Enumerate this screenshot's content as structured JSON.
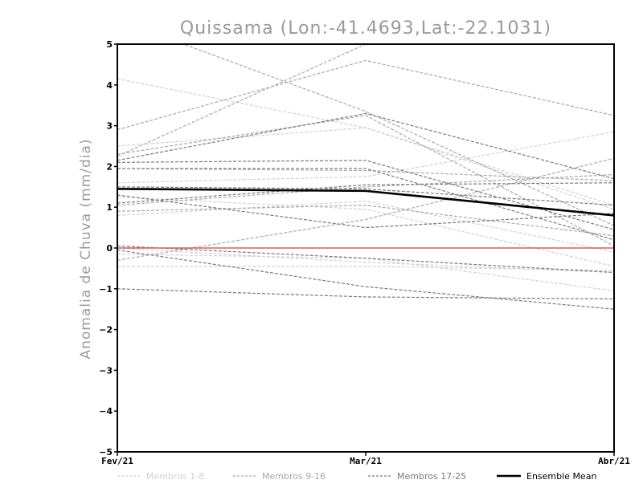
{
  "chart_data": {
    "type": "line",
    "title": "Quissama (Lon:-41.4693,Lat:-22.1031)",
    "ylabel": "Anomalia de Chuva (mm/dia)",
    "xlabel": "",
    "categories": [
      "Fev/21",
      "Mar/21",
      "Abr/21"
    ],
    "ylim": [
      -5,
      5
    ],
    "yticks": [
      "-5",
      "-4",
      "-3",
      "-2",
      "-1",
      "0",
      "1",
      "2",
      "3",
      "4",
      "5"
    ],
    "legend": [
      {
        "name": "Membros 1-8",
        "color": "#d2d2d2",
        "style": "dashed"
      },
      {
        "name": "Membros 9-16",
        "color": "#a9a9a9",
        "style": "dashed"
      },
      {
        "name": "Membros 17-25",
        "color": "#7a7a7a",
        "style": "dashed"
      },
      {
        "name": "Ensemble Mean",
        "color": "#000000",
        "style": "solid"
      }
    ],
    "zero_line_color": "#e05a5a",
    "series": [
      {
        "name": "Membro 1",
        "group": 0,
        "values": [
          4.15,
          2.95,
          1.05
        ]
      },
      {
        "name": "Membro 2",
        "group": 0,
        "values": [
          2.5,
          2.95,
          0.95
        ]
      },
      {
        "name": "Membro 3",
        "group": 0,
        "values": [
          1.6,
          1.75,
          2.85
        ]
      },
      {
        "name": "Membro 4",
        "group": 0,
        "values": [
          1.25,
          0.95,
          -0.45
        ]
      },
      {
        "name": "Membro 5",
        "group": 0,
        "values": [
          0.8,
          1.15,
          -0.1
        ]
      },
      {
        "name": "Membro 6",
        "group": 0,
        "values": [
          -0.15,
          -0.25,
          -1.05
        ]
      },
      {
        "name": "Membro 7",
        "group": 0,
        "values": [
          -0.45,
          -0.45,
          -0.55
        ]
      },
      {
        "name": "Membro 8",
        "group": 0,
        "values": [
          0.0,
          -0.35,
          -0.6
        ]
      },
      {
        "name": "Membro 9",
        "group": 1,
        "values": [
          2.9,
          4.6,
          3.25
        ]
      },
      {
        "name": "Membro 10",
        "group": 1,
        "values": [
          2.25,
          5.0,
          5.0
        ]
      },
      {
        "name": "Membro 11",
        "group": 1,
        "values": [
          5.6,
          3.35,
          0.55
        ]
      },
      {
        "name": "Membro 12",
        "group": 1,
        "values": [
          2.3,
          3.25,
          0.05
        ]
      },
      {
        "name": "Membro 13",
        "group": 1,
        "values": [
          1.95,
          1.9,
          1.65
        ]
      },
      {
        "name": "Membro 14",
        "group": 1,
        "values": [
          1.05,
          1.5,
          1.8
        ]
      },
      {
        "name": "Membro 15",
        "group": 1,
        "values": [
          0.9,
          1.05,
          0.3
        ]
      },
      {
        "name": "Membro 16",
        "group": 1,
        "values": [
          -0.3,
          0.7,
          2.2
        ]
      },
      {
        "name": "Membro 17",
        "group": 2,
        "values": [
          2.15,
          3.3,
          1.7
        ]
      },
      {
        "name": "Membro 18",
        "group": 2,
        "values": [
          2.1,
          2.15,
          0.45
        ]
      },
      {
        "name": "Membro 19",
        "group": 2,
        "values": [
          1.95,
          1.95,
          0.2
        ]
      },
      {
        "name": "Membro 20",
        "group": 2,
        "values": [
          1.1,
          1.55,
          1.6
        ]
      },
      {
        "name": "Membro 21",
        "group": 2,
        "values": [
          1.5,
          1.45,
          1.05
        ]
      },
      {
        "name": "Membro 22",
        "group": 2,
        "values": [
          1.3,
          0.5,
          0.85
        ]
      },
      {
        "name": "Membro 23",
        "group": 2,
        "values": [
          0.05,
          -0.25,
          -0.6
        ]
      },
      {
        "name": "Membro 24",
        "group": 2,
        "values": [
          -0.05,
          -0.95,
          -1.5
        ]
      },
      {
        "name": "Membro 25",
        "group": 2,
        "values": [
          -1.0,
          -1.2,
          -1.25
        ]
      }
    ],
    "ensemble_mean": [
      1.45,
      1.4,
      0.8
    ]
  }
}
